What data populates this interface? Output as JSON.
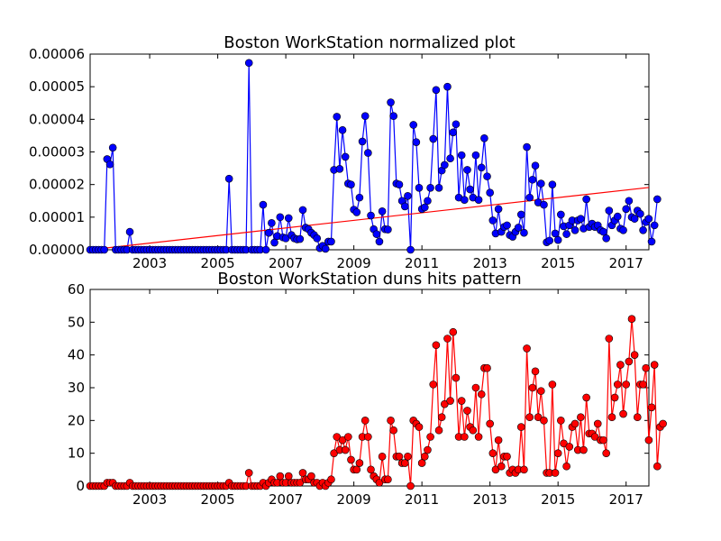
{
  "charts": [
    {
      "type": "line",
      "title": "Boston WorkStation normalized plot",
      "xlim": [
        2001.25,
        2017.67
      ],
      "ylim": [
        0,
        6e-05
      ],
      "x_ticks": [
        2003,
        2005,
        2007,
        2009,
        2011,
        2013,
        2015,
        2017
      ],
      "x_tick_labels": [
        "2003",
        "2005",
        "2007",
        "2009",
        "2011",
        "2013",
        "2015",
        "2017"
      ],
      "y_ticks": [
        0,
        1e-05,
        2e-05,
        3e-05,
        4e-05,
        5e-05,
        6e-05
      ],
      "y_tick_labels": [
        "0.00000",
        "0.00001",
        "0.00002",
        "0.00003",
        "0.00004",
        "0.00005",
        "0.00006"
      ],
      "series_color": "#0000ff",
      "trend_color": "#ff0000",
      "trend_line": {
        "x": [
          2001.25,
          2017.67
        ],
        "y": [
          0,
          1.91e-05
        ]
      },
      "x_start": 2001.25,
      "x_step": 0.0833333,
      "values": [
        0,
        0,
        0,
        0,
        0,
        0,
        2.78e-05,
        2.62e-05,
        3.13e-05,
        0,
        0,
        0,
        0,
        0,
        5.5e-06,
        0,
        0,
        0,
        0,
        0,
        0,
        0,
        0,
        0,
        0,
        0,
        0,
        0,
        0,
        0,
        0,
        0,
        0,
        0,
        0,
        0,
        0,
        0,
        0,
        0,
        0,
        0,
        0,
        0,
        0,
        0,
        0,
        0,
        0,
        2.18e-05,
        0,
        0,
        0,
        0,
        0,
        0,
        5.73e-05,
        0,
        0,
        0,
        0,
        1.38e-05,
        0,
        5.2e-06,
        8.2e-06,
        2.2e-06,
        4.2e-06,
        1e-05,
        3.8e-06,
        3.5e-06,
        9.7e-06,
        4.5e-06,
        3.5e-06,
        3.2e-06,
        3.3e-06,
        1.22e-05,
        6.8e-06,
        6.3e-06,
        5.2e-06,
        4.5e-06,
        3.5e-06,
        5e-07,
        1.2e-06,
        3e-07,
        2.5e-06,
        2.5e-06,
        2.45e-05,
        4.08e-05,
        2.48e-05,
        3.67e-05,
        2.85e-05,
        2.03e-05,
        2e-05,
        1.23e-05,
        1.15e-05,
        1.6e-05,
        3.32e-05,
        4.1e-05,
        2.97e-05,
        1.05e-05,
        6.3e-06,
        4.8e-06,
        2.5e-06,
        1.18e-05,
        6.3e-06,
        6.2e-06,
        4.52e-05,
        4.1e-05,
        2.03e-05,
        2e-05,
        1.5e-05,
        1.33e-05,
        1.65e-05,
        0,
        3.83e-05,
        3.3e-05,
        1.9e-05,
        1.25e-05,
        1.3e-05,
        1.5e-05,
        1.9e-05,
        3.4e-05,
        4.9e-05,
        1.9e-05,
        2.43e-05,
        2.6e-05,
        5e-05,
        2.8e-05,
        3.6e-05,
        3.85e-05,
        1.6e-05,
        2.9e-05,
        1.53e-05,
        2.45e-05,
        1.85e-05,
        1.6e-05,
        2.9e-05,
        1.53e-05,
        2.52e-05,
        3.42e-05,
        2.25e-05,
        1.75e-05,
        9e-06,
        5e-06,
        1.25e-05,
        5.5e-06,
        7e-06,
        7.5e-06,
        4.5e-06,
        4e-06,
        5.5e-06,
        6.8e-06,
        1.08e-05,
        5.2e-06,
        3.15e-05,
        1.6e-05,
        2.15e-05,
        2.58e-05,
        1.45e-05,
        2.03e-05,
        1.38e-05,
        2.3e-06,
        2.8e-06,
        2e-05,
        5e-06,
        3e-06,
        1.08e-05,
        7.2e-06,
        4.8e-06,
        7.5e-06,
        9e-06,
        6e-06,
        9e-06,
        9.5e-06,
        6.5e-06,
        1.55e-05,
        7e-06,
        8e-06,
        7e-06,
        7.5e-06,
        6e-06,
        5.5e-06,
        3.5e-06,
        1.2e-05,
        7.5e-06,
        9e-06,
        1.02e-05,
        6.5e-06,
        6e-06,
        1.25e-05,
        1.5e-05,
        1e-05,
        9.5e-06,
        1.2e-05,
        1.1e-05,
        6e-06,
        8.5e-06,
        9.5e-06,
        2.5e-06,
        7.5e-06,
        1.55e-05
      ]
    },
    {
      "type": "line",
      "title": "Boston WorkStation duns hits pattern",
      "xlim": [
        2001.25,
        2017.67
      ],
      "ylim": [
        0,
        60
      ],
      "x_ticks": [
        2003,
        2005,
        2007,
        2009,
        2011,
        2013,
        2015,
        2017
      ],
      "x_tick_labels": [
        "2003",
        "2005",
        "2007",
        "2009",
        "2011",
        "2013",
        "2015",
        "2017"
      ],
      "y_ticks": [
        0,
        10,
        20,
        30,
        40,
        50,
        60
      ],
      "y_tick_labels": [
        "0",
        "10",
        "20",
        "30",
        "40",
        "50",
        "60"
      ],
      "series_color": "#ff0000",
      "x_start": 2001.25,
      "x_step": 0.0833333,
      "values": [
        0,
        0,
        0,
        0,
        0,
        0,
        1,
        1,
        1,
        0,
        0,
        0,
        0,
        0,
        1,
        0,
        0,
        0,
        0,
        0,
        0,
        0,
        0,
        0,
        0,
        0,
        0,
        0,
        0,
        0,
        0,
        0,
        0,
        0,
        0,
        0,
        0,
        0,
        0,
        0,
        0,
        0,
        0,
        0,
        0,
        0,
        0,
        0,
        0,
        1,
        0,
        0,
        0,
        0,
        0,
        0,
        4,
        0,
        0,
        0,
        0,
        1,
        0,
        1,
        2,
        1,
        1,
        3,
        1,
        1,
        3,
        1,
        1,
        1,
        1,
        4,
        2,
        2,
        3,
        1,
        1,
        0,
        1,
        0,
        1,
        2,
        10,
        15,
        11,
        14,
        11,
        15,
        8,
        5,
        5,
        7,
        15,
        20,
        15,
        5,
        3,
        2,
        1,
        9,
        2,
        2,
        20,
        17,
        9,
        9,
        7,
        7,
        9,
        0,
        20,
        19,
        18,
        7,
        9,
        11,
        15,
        31,
        43,
        17,
        21,
        25,
        45,
        26,
        47,
        33,
        15,
        26,
        15,
        23,
        18,
        17,
        30,
        15,
        28,
        36,
        36,
        19,
        10,
        5,
        14,
        6,
        9,
        9,
        4,
        5,
        4,
        5,
        18,
        5,
        42,
        21,
        30,
        35,
        21,
        29,
        20,
        4,
        4,
        31,
        4,
        10,
        20,
        13,
        6,
        12,
        18,
        19,
        11,
        21,
        11,
        27,
        16,
        16,
        15,
        19,
        14,
        14,
        10,
        45,
        21,
        27,
        31,
        37,
        22,
        31,
        38,
        51,
        40,
        21,
        31,
        31,
        36,
        14,
        24,
        37,
        6,
        18,
        19
      ]
    }
  ]
}
